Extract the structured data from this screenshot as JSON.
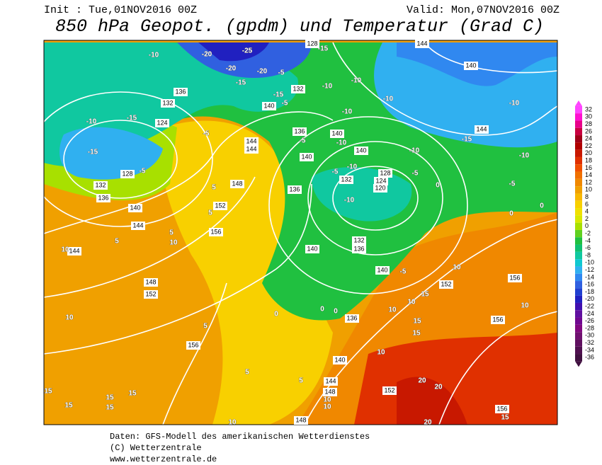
{
  "header": {
    "init": "Init : Tue,01NOV2016 00Z",
    "valid": "Valid: Mon,07NOV2016 00Z",
    "title": "850 hPa Geopot. (gpdm) und Temperatur (Grad C)"
  },
  "colorbar": {
    "levels": [
      32,
      30,
      28,
      26,
      24,
      22,
      20,
      18,
      16,
      14,
      12,
      10,
      8,
      6,
      4,
      2,
      0,
      -2,
      -4,
      -6,
      -8,
      -10,
      -12,
      -14,
      -16,
      -18,
      -20,
      -22,
      -24,
      -26,
      -28,
      -30,
      -32,
      -34,
      -36
    ],
    "colors": [
      "#ff44ff",
      "#ff10d0",
      "#e8008a",
      "#c80040",
      "#a00018",
      "#b00000",
      "#c81800",
      "#e03000",
      "#f05000",
      "#f07000",
      "#f08800",
      "#f0a000",
      "#f8b800",
      "#f8d000",
      "#f0e000",
      "#d8e800",
      "#a8e000",
      "#60d020",
      "#20c040",
      "#10c070",
      "#10c8a0",
      "#10c8d0",
      "#30b0f0",
      "#3088f0",
      "#3060e0",
      "#2040d0",
      "#2020c0",
      "#4010b0",
      "#6010a0",
      "#700890",
      "#800880",
      "#701070",
      "#601060",
      "#501050",
      "#401040"
    ]
  },
  "contour_labels": {
    "geopotential": [
      128,
      144,
      140,
      136,
      132,
      132,
      140,
      136,
      144,
      144,
      140,
      140,
      140,
      144,
      124,
      128,
      132,
      136,
      140,
      144,
      148,
      152,
      156,
      136,
      132,
      128,
      124,
      120,
      132,
      136,
      140,
      140,
      144,
      148,
      152,
      152,
      156,
      156,
      136,
      156,
      140,
      144,
      148,
      152,
      148,
      156
    ],
    "temperature": [
      -10,
      -20,
      -25,
      -15,
      -20,
      -20,
      -5,
      -15,
      -15,
      -5,
      -10,
      -10,
      -10,
      -10,
      -10,
      -10,
      -15,
      -15,
      -10,
      -10,
      -5,
      -15,
      -5,
      -5,
      -5,
      -10,
      -10,
      -5,
      -5,
      -10,
      0,
      0,
      0,
      5,
      5,
      5,
      5,
      10,
      10,
      0,
      0,
      0,
      -5,
      10,
      10,
      15,
      10,
      15,
      15,
      10,
      10,
      5,
      5,
      5,
      10,
      10,
      10,
      15,
      15,
      15,
      15,
      15,
      20,
      20,
      20,
      15,
      10
    ]
  },
  "footer": {
    "lines": [
      "Daten: GFS-Modell des amerikanischen Wetterdienstes",
      "(C) Wetterzentrale",
      "www.wetterzentrale.de"
    ]
  }
}
